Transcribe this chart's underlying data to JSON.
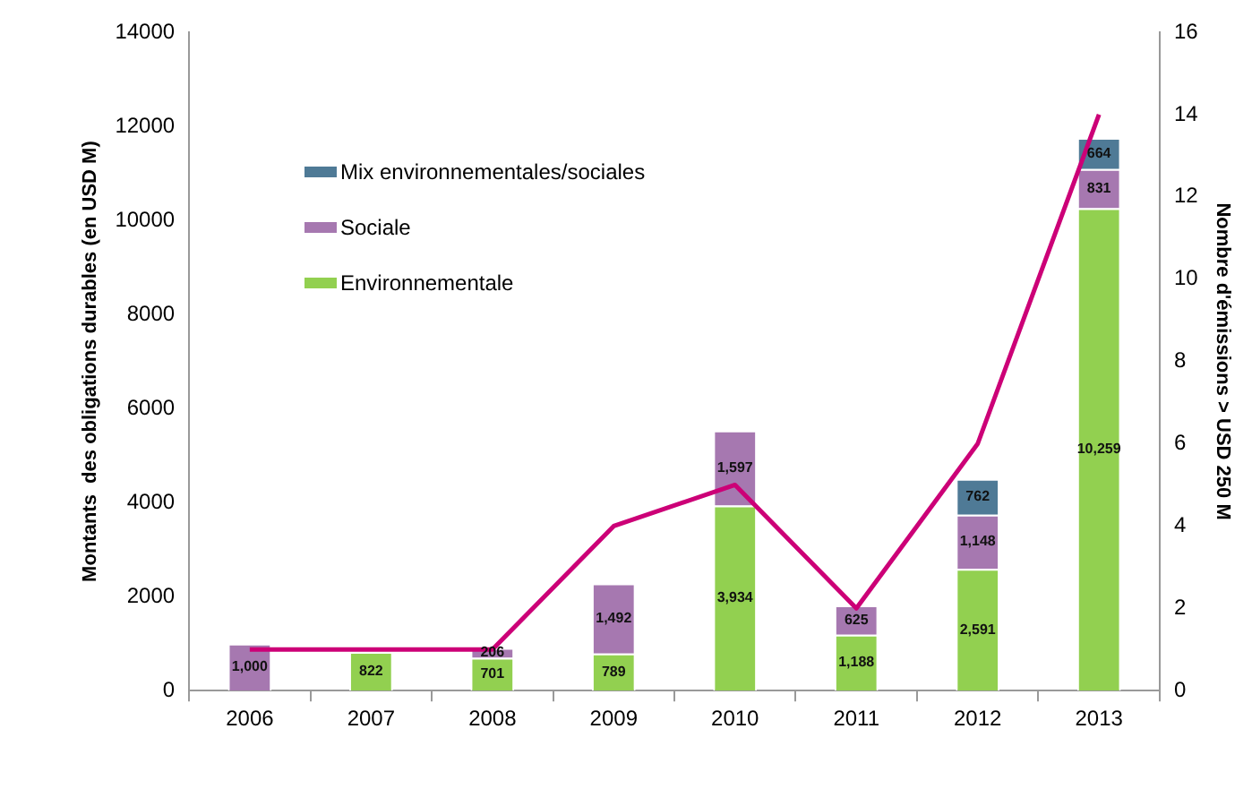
{
  "chart_data": {
    "type": "bar",
    "stacked": true,
    "categories": [
      "2006",
      "2007",
      "2008",
      "2009",
      "2010",
      "2011",
      "2012",
      "2013"
    ],
    "ylabel": "Montants  des obligations durables (en USD M)",
    "y2label": "Nombre d'émissions > USD 250 M",
    "ylim": [
      0,
      14000
    ],
    "yticks": [
      0,
      2000,
      4000,
      6000,
      8000,
      10000,
      12000,
      14000
    ],
    "y2lim": [
      0,
      16
    ],
    "y2ticks": [
      0,
      2,
      4,
      6,
      8,
      10,
      12,
      14,
      16
    ],
    "grid": false,
    "legend": "top left",
    "series": [
      {
        "name": "Environnementale",
        "color": "#92d050",
        "values": [
          null,
          822,
          701,
          789,
          3934,
          1188,
          2591,
          10259
        ],
        "value_labels": [
          null,
          "822",
          "701",
          "789",
          "3,934",
          "1,188",
          "2,591",
          "10,259"
        ]
      },
      {
        "name": "Sociale",
        "color": "#a678b0",
        "values": [
          1000,
          null,
          206,
          1492,
          1597,
          625,
          1148,
          831
        ],
        "value_labels": [
          "1,000",
          null,
          "206",
          "1,492",
          "1,597",
          "625",
          "1,148",
          "831"
        ]
      },
      {
        "name": "Mix environnementales/sociales",
        "color": "#4f7a96",
        "values": [
          null,
          null,
          null,
          null,
          null,
          null,
          762,
          664
        ],
        "value_labels": [
          null,
          null,
          null,
          null,
          null,
          null,
          "762",
          "664"
        ]
      },
      {
        "type": "line",
        "axis": "y2",
        "color": "#cc0077",
        "values": [
          1,
          1,
          1,
          4,
          5,
          2,
          6,
          14
        ]
      }
    ]
  }
}
